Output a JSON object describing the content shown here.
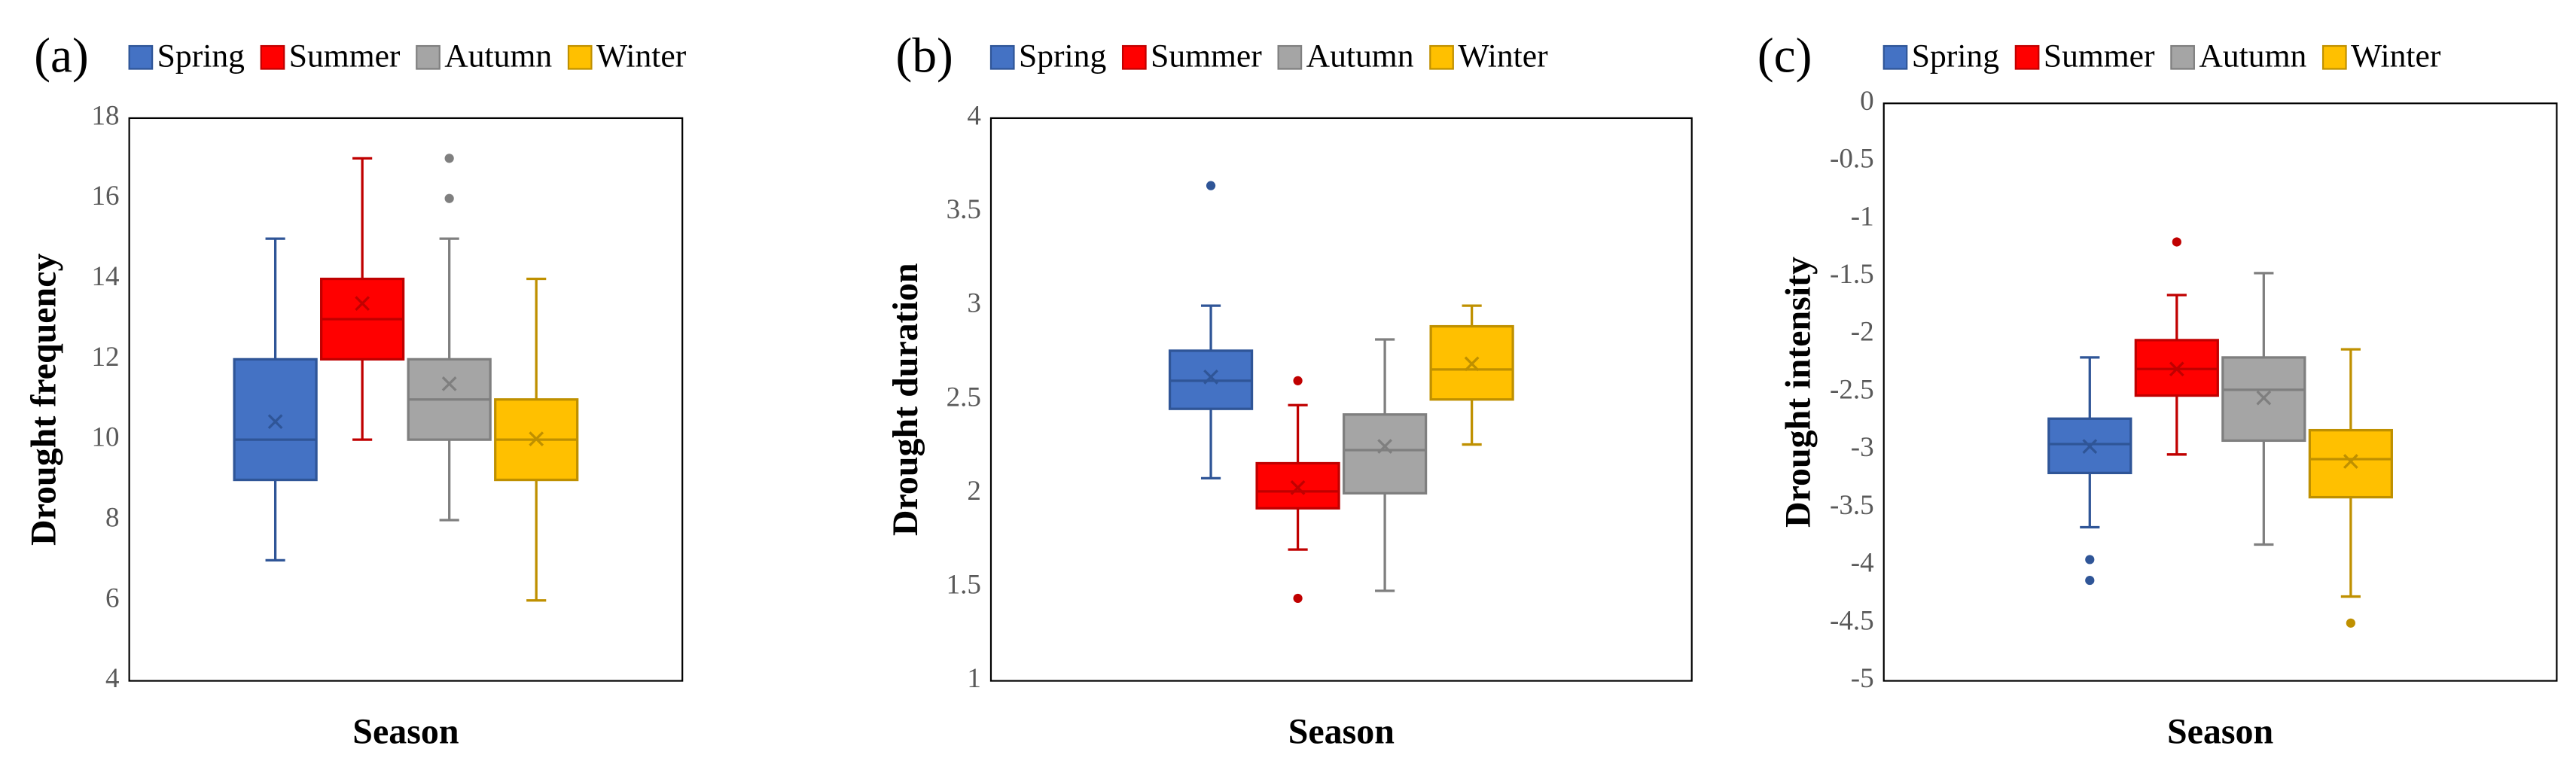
{
  "chart_data": [
    {
      "type": "box",
      "label": "(a)",
      "xlabel": "Season",
      "ylabel": "Drought frequency",
      "ylim": [
        4,
        18
      ],
      "yticks": [
        4,
        6,
        8,
        10,
        12,
        14,
        16,
        18
      ],
      "series": [
        {
          "name": "Spring",
          "color": "#4472c4",
          "edge_color": "#2f5597",
          "min": 7,
          "q1": 9,
          "median": 10,
          "q3": 12,
          "max": 15,
          "mean": 10.45,
          "outliers": []
        },
        {
          "name": "Summer",
          "color": "#ff0000",
          "edge_color": "#c00000",
          "min": 10,
          "q1": 12,
          "median": 13,
          "q3": 14,
          "max": 17,
          "mean": 13.39,
          "outliers": []
        },
        {
          "name": "Autumn",
          "color": "#a5a5a5",
          "edge_color": "#7f7f7f",
          "min": 8,
          "q1": 10,
          "median": 11,
          "q3": 12,
          "max": 15,
          "mean": 11.39,
          "outliers": [
            16,
            17
          ]
        },
        {
          "name": "Winter",
          "color": "#ffc000",
          "edge_color": "#bf9000",
          "min": 6,
          "q1": 9,
          "median": 10,
          "q3": 11,
          "max": 14,
          "mean": 10.02,
          "outliers": []
        }
      ]
    },
    {
      "type": "box",
      "label": "(b)",
      "xlabel": "Season",
      "ylabel": "Drought duration",
      "ylim": [
        1,
        4
      ],
      "yticks": [
        1,
        1.5,
        2,
        2.5,
        3,
        3.5,
        4
      ],
      "series": [
        {
          "name": "Spring",
          "color": "#4472c4",
          "edge_color": "#2f5597",
          "min": 2.08,
          "q1": 2.45,
          "median": 2.6,
          "q3": 2.76,
          "max": 3.0,
          "mean": 2.62,
          "outliers": [
            3.64
          ]
        },
        {
          "name": "Summer",
          "color": "#ff0000",
          "edge_color": "#c00000",
          "min": 1.7,
          "q1": 1.92,
          "median": 2.01,
          "q3": 2.16,
          "max": 2.47,
          "mean": 2.03,
          "outliers": [
            2.6,
            1.44
          ]
        },
        {
          "name": "Autumn",
          "color": "#a5a5a5",
          "edge_color": "#7f7f7f",
          "min": 1.48,
          "q1": 2.0,
          "median": 2.23,
          "q3": 2.42,
          "max": 2.82,
          "mean": 2.25,
          "outliers": []
        },
        {
          "name": "Winter",
          "color": "#ffc000",
          "edge_color": "#bf9000",
          "min": 2.26,
          "q1": 2.5,
          "median": 2.66,
          "q3": 2.89,
          "max": 3.0,
          "mean": 2.69,
          "outliers": []
        }
      ]
    },
    {
      "type": "box",
      "label": "(c)",
      "xlabel": "Season",
      "ylabel": "Drought intensity",
      "ylim": [
        -5,
        0
      ],
      "yticks": [
        -5,
        -4.5,
        -4,
        -3.5,
        -3,
        -2.5,
        -2,
        -1.5,
        -1,
        -0.5,
        0
      ],
      "series": [
        {
          "name": "Spring",
          "color": "#4472c4",
          "edge_color": "#2f5597",
          "min": -3.67,
          "q1": -3.2,
          "median": -2.95,
          "q3": -2.73,
          "max": -2.2,
          "mean": -2.97,
          "outliers": [
            -3.95,
            -4.13
          ]
        },
        {
          "name": "Summer",
          "color": "#ff0000",
          "edge_color": "#c00000",
          "min": -3.04,
          "q1": -2.53,
          "median": -2.3,
          "q3": -2.05,
          "max": -1.66,
          "mean": -2.3,
          "outliers": [
            -1.2
          ]
        },
        {
          "name": "Autumn",
          "color": "#a5a5a5",
          "edge_color": "#7f7f7f",
          "min": -3.82,
          "q1": -2.92,
          "median": -2.48,
          "q3": -2.2,
          "max": -1.47,
          "mean": -2.55,
          "outliers": []
        },
        {
          "name": "Winter",
          "color": "#ffc000",
          "edge_color": "#bf9000",
          "min": -4.27,
          "q1": -3.41,
          "median": -3.08,
          "q3": -2.83,
          "max": -2.13,
          "mean": -3.1,
          "outliers": [
            -4.5
          ]
        }
      ]
    }
  ]
}
